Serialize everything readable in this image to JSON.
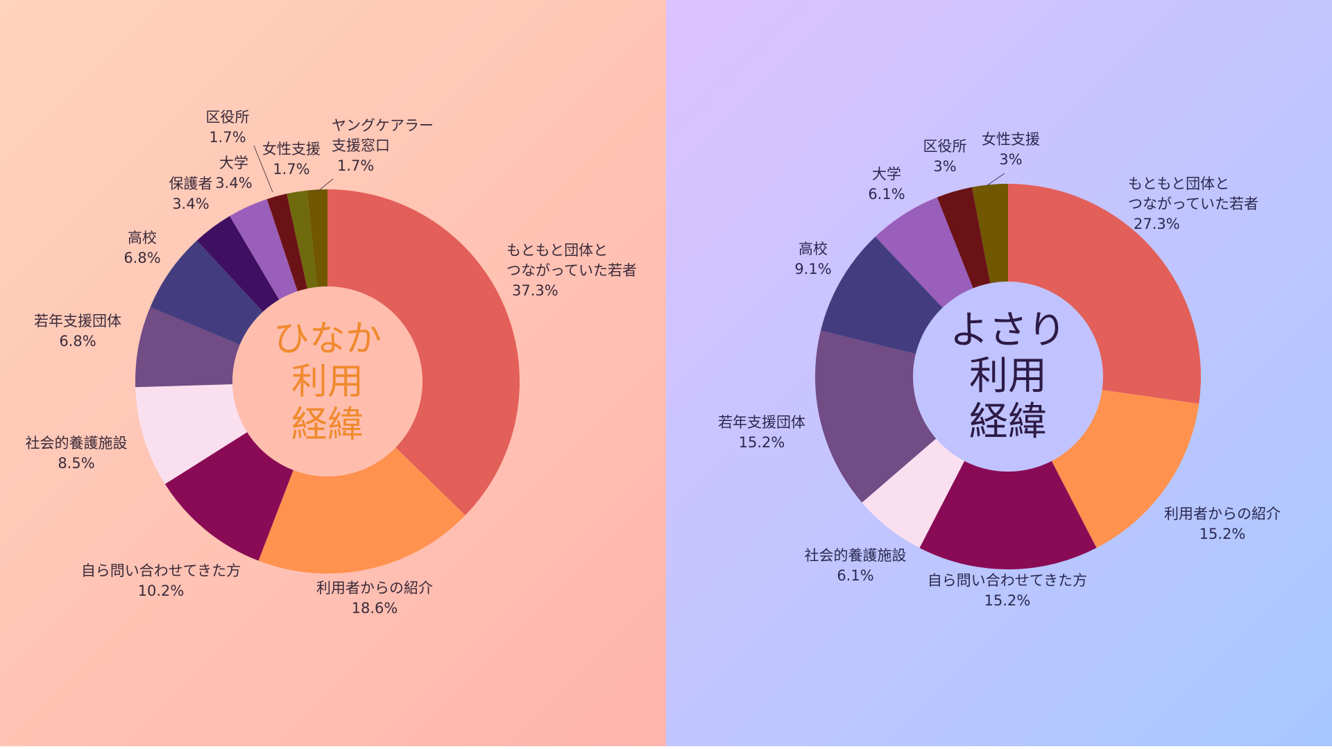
{
  "chart_data": [
    {
      "type": "pie",
      "center_title": [
        "ひなか",
        "利用",
        "経緯"
      ],
      "slices": [
        {
          "label": [
            "もともと団体と",
            "つながっていた若者"
          ],
          "value": 37.3,
          "value_label": "37.3%",
          "color": "#e35f59"
        },
        {
          "label": [
            "利用者からの紹介"
          ],
          "value": 18.6,
          "value_label": "18.6%",
          "color": "#ff924f"
        },
        {
          "label": [
            "自ら問い合わせてきた方"
          ],
          "value": 10.2,
          "value_label": "10.2%",
          "color": "#8a0b55"
        },
        {
          "label": [
            "社会的養護施設"
          ],
          "value": 8.5,
          "value_label": "8.5%",
          "color": "#fae0ef"
        },
        {
          "label": [
            "若年支援団体"
          ],
          "value": 6.8,
          "value_label": "6.8%",
          "color": "#714c85"
        },
        {
          "label": [
            "高校"
          ],
          "value": 6.8,
          "value_label": "6.8%",
          "color": "#433d7f"
        },
        {
          "label": [
            "保護者"
          ],
          "value": 3.4,
          "value_label": "3.4%",
          "color": "#3f0f62"
        },
        {
          "label": [
            "大学"
          ],
          "value": 3.4,
          "value_label": "3.4%",
          "color": "#9a5fba"
        },
        {
          "label": [
            "区役所"
          ],
          "value": 1.7,
          "value_label": "1.7%",
          "color": "#6b1216"
        },
        {
          "label": [
            "女性支援"
          ],
          "value": 1.7,
          "value_label": "1.7%",
          "color": "#6f6a0e"
        },
        {
          "label": [
            "ヤングケアラー",
            "支援窓口"
          ],
          "value": 1.7,
          "value_label": "1.7%",
          "color": "#705700"
        }
      ]
    },
    {
      "type": "pie",
      "center_title": [
        "よさり",
        "利用",
        "経緯"
      ],
      "slices": [
        {
          "label": [
            "もともと団体と",
            "つながっていた若者"
          ],
          "value": 27.3,
          "value_label": "27.3%",
          "color": "#e35f59"
        },
        {
          "label": [
            "利用者からの紹介"
          ],
          "value": 15.2,
          "value_label": "15.2%",
          "color": "#ff924f"
        },
        {
          "label": [
            "自ら問い合わせてきた方"
          ],
          "value": 15.2,
          "value_label": "15.2%",
          "color": "#8a0b55"
        },
        {
          "label": [
            "社会的養護施設"
          ],
          "value": 6.1,
          "value_label": "6.1%",
          "color": "#fae0ef"
        },
        {
          "label": [
            "若年支援団体"
          ],
          "value": 15.2,
          "value_label": "15.2%",
          "color": "#714c85"
        },
        {
          "label": [
            "高校"
          ],
          "value": 9.1,
          "value_label": "9.1%",
          "color": "#433d7f"
        },
        {
          "label": [
            "大学"
          ],
          "value": 6.1,
          "value_label": "6.1%",
          "color": "#9a5fba"
        },
        {
          "label": [
            "区役所"
          ],
          "value": 3,
          "value_label": "3%",
          "color": "#6b1216"
        },
        {
          "label": [
            "女性支援"
          ],
          "value": 3,
          "value_label": "3%",
          "color": "#705700"
        }
      ]
    }
  ]
}
